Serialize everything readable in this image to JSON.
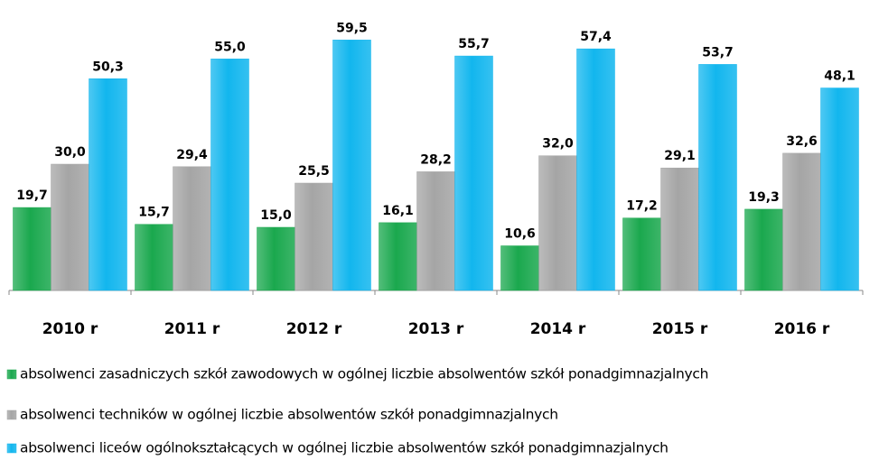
{
  "chart_data": {
    "type": "bar",
    "categories": [
      "2010 r",
      "2011 r",
      "2012 r",
      "2013 r",
      "2014 r",
      "2015 r",
      "2016 r"
    ],
    "series": [
      {
        "name": "absolwenci zasadniczych szkół zawodowych w ogólnej liczbie absolwentów szkół ponadgimnazjalnych",
        "color": "#1aa84e",
        "values": [
          19.7,
          15.7,
          15.0,
          16.1,
          10.6,
          17.2,
          19.3
        ],
        "value_labels": [
          "19,7",
          "15,7",
          "15,0",
          "16,1",
          "10,6",
          "17,2",
          "19,3"
        ]
      },
      {
        "name": "absolwenci techników w ogólnej liczbie absolwentów szkół ponadgimnazjalnych",
        "color": "#a5a5a5",
        "values": [
          30.0,
          29.4,
          25.5,
          28.2,
          32.0,
          29.1,
          32.6
        ],
        "value_labels": [
          "30,0",
          "29,4",
          "25,5",
          "28,2",
          "32,0",
          "29,1",
          "32,6"
        ]
      },
      {
        "name": "absolwenci liceów ogólnokształcących w ogólnej liczbie absolwentów szkół ponadgimnazjalnych",
        "color": "#12b6ee",
        "values": [
          50.3,
          55.0,
          59.5,
          55.7,
          57.4,
          53.7,
          48.1
        ],
        "value_labels": [
          "50,3",
          "55,0",
          "59,5",
          "55,7",
          "57,4",
          "53,7",
          "48,1"
        ]
      }
    ],
    "ylim": [
      0,
      60
    ]
  }
}
